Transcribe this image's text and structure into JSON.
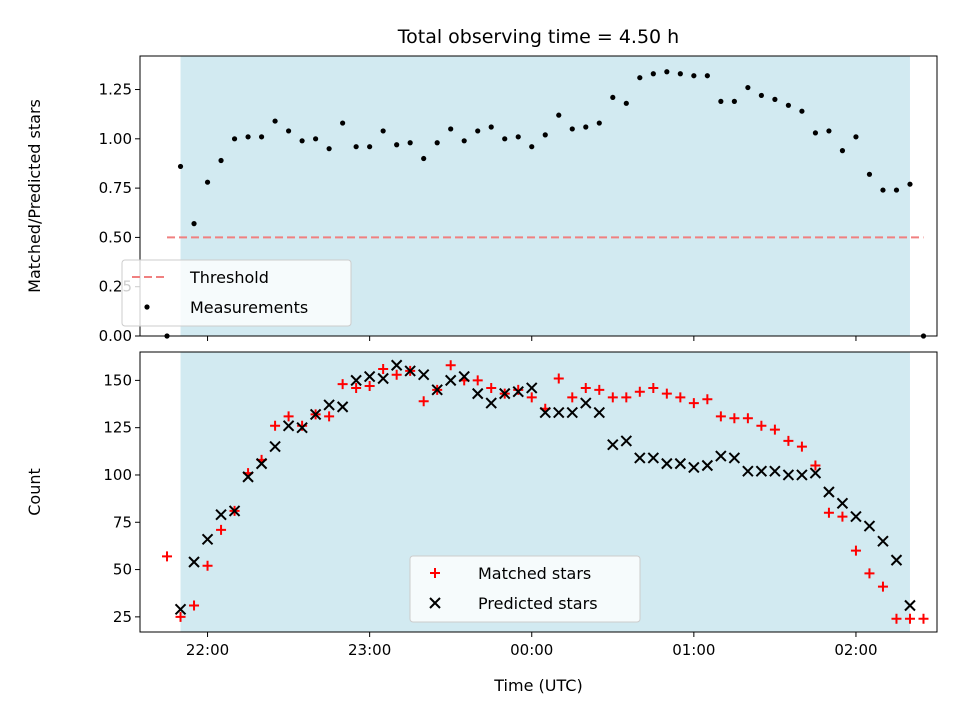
{
  "chart_data": [
    {
      "type": "scatter",
      "title": "Total observing time = 4.50 h",
      "xlabel": "",
      "ylabel": "Matched/Predicted stars",
      "xlim": [
        "21:35",
        "02:30"
      ],
      "ylim": [
        0,
        1.42
      ],
      "y_ticks": [
        "0.00",
        "0.25",
        "0.50",
        "0.75",
        "1.00",
        "1.25"
      ],
      "shaded_interval": [
        "21:50",
        "02:20"
      ],
      "shaded_color": "#add8e6",
      "legend_position": "lower-left",
      "series": [
        {
          "name": "Threshold",
          "style": "dashed-line",
          "color": "#f08080",
          "x": [
            "21:45",
            "02:25"
          ],
          "y": [
            0.5,
            0.5
          ]
        },
        {
          "name": "Measurements",
          "style": "dot",
          "color": "#000000",
          "x": [
            "21:45",
            "21:50",
            "21:55",
            "22:00",
            "22:05",
            "22:10",
            "22:15",
            "22:20",
            "22:25",
            "22:30",
            "22:35",
            "22:40",
            "22:45",
            "22:50",
            "22:55",
            "23:00",
            "23:05",
            "23:10",
            "23:15",
            "23:20",
            "23:25",
            "23:30",
            "23:35",
            "23:40",
            "23:45",
            "23:50",
            "23:55",
            "00:00",
            "00:05",
            "00:10",
            "00:15",
            "00:20",
            "00:25",
            "00:30",
            "00:35",
            "00:40",
            "00:45",
            "00:50",
            "00:55",
            "01:00",
            "01:05",
            "01:10",
            "01:15",
            "01:20",
            "01:25",
            "01:30",
            "01:35",
            "01:40",
            "01:45",
            "01:50",
            "01:55",
            "02:00",
            "02:05",
            "02:10",
            "02:15",
            "02:20",
            "02:25"
          ],
          "y": [
            0.0,
            0.86,
            0.57,
            0.78,
            0.89,
            1.0,
            1.01,
            1.01,
            1.09,
            1.04,
            0.99,
            1.0,
            0.95,
            1.08,
            0.96,
            0.96,
            1.04,
            0.97,
            0.98,
            0.9,
            0.98,
            1.05,
            0.99,
            1.04,
            1.06,
            1.0,
            1.01,
            0.96,
            1.02,
            1.12,
            1.05,
            1.06,
            1.08,
            1.21,
            1.18,
            1.31,
            1.33,
            1.34,
            1.33,
            1.32,
            1.32,
            1.19,
            1.19,
            1.26,
            1.22,
            1.2,
            1.17,
            1.14,
            1.03,
            1.04,
            0.94,
            1.01,
            0.82,
            0.74,
            0.74,
            0.77,
            0.0
          ]
        }
      ]
    },
    {
      "type": "scatter",
      "title": "",
      "xlabel": "Time (UTC)",
      "ylabel": "Count",
      "xlim": [
        "21:35",
        "02:30"
      ],
      "ylim": [
        17,
        165
      ],
      "x_ticks": [
        "22:00",
        "23:00",
        "00:00",
        "01:00",
        "02:00"
      ],
      "y_ticks": [
        25,
        50,
        75,
        100,
        125,
        150
      ],
      "shaded_interval": [
        "21:50",
        "02:20"
      ],
      "shaded_color": "#add8e6",
      "legend_position": "lower-center",
      "series": [
        {
          "name": "Matched stars",
          "marker": "plus",
          "color": "#ff0000",
          "x": [
            "21:45",
            "21:50",
            "21:55",
            "22:00",
            "22:05",
            "22:10",
            "22:15",
            "22:20",
            "22:25",
            "22:30",
            "22:35",
            "22:40",
            "22:45",
            "22:50",
            "22:55",
            "23:00",
            "23:05",
            "23:10",
            "23:15",
            "23:20",
            "23:25",
            "23:30",
            "23:35",
            "23:40",
            "23:45",
            "23:50",
            "23:55",
            "00:00",
            "00:05",
            "00:10",
            "00:15",
            "00:20",
            "00:25",
            "00:30",
            "00:35",
            "00:40",
            "00:45",
            "00:50",
            "00:55",
            "01:00",
            "01:05",
            "01:10",
            "01:15",
            "01:20",
            "01:25",
            "01:30",
            "01:35",
            "01:40",
            "01:45",
            "01:50",
            "01:55",
            "02:00",
            "02:05",
            "02:10",
            "02:15",
            "02:20",
            "02:25"
          ],
          "y": [
            57,
            25,
            31,
            52,
            71,
            81,
            101,
            108,
            126,
            131,
            126,
            132,
            131,
            148,
            146,
            147,
            156,
            153,
            155,
            139,
            145,
            158,
            150,
            150,
            146,
            143,
            145,
            141,
            135,
            151,
            141,
            146,
            145,
            141,
            141,
            144,
            146,
            143,
            141,
            138,
            140,
            131,
            130,
            130,
            126,
            124,
            118,
            115,
            105,
            80,
            78,
            60,
            48,
            41,
            24,
            24,
            24
          ]
        },
        {
          "name": "Predicted stars",
          "marker": "x",
          "color": "#000000",
          "x": [
            "21:50",
            "21:55",
            "22:00",
            "22:05",
            "22:10",
            "22:15",
            "22:20",
            "22:25",
            "22:30",
            "22:35",
            "22:40",
            "22:45",
            "22:50",
            "22:55",
            "23:00",
            "23:05",
            "23:10",
            "23:15",
            "23:20",
            "23:25",
            "23:30",
            "23:35",
            "23:40",
            "23:45",
            "23:50",
            "23:55",
            "00:00",
            "00:05",
            "00:10",
            "00:15",
            "00:20",
            "00:25",
            "00:30",
            "00:35",
            "00:40",
            "00:45",
            "00:50",
            "00:55",
            "01:00",
            "01:05",
            "01:10",
            "01:15",
            "01:20",
            "01:25",
            "01:30",
            "01:35",
            "01:40",
            "01:45",
            "01:50",
            "01:55",
            "02:00",
            "02:05",
            "02:10",
            "02:15",
            "02:20"
          ],
          "y": [
            29,
            54,
            66,
            79,
            81,
            99,
            106,
            115,
            126,
            125,
            132,
            137,
            136,
            150,
            152,
            151,
            158,
            155,
            153,
            145,
            150,
            152,
            143,
            138,
            143,
            144,
            146,
            133,
            133,
            133,
            138,
            133,
            116,
            118,
            109,
            109,
            106,
            106,
            104,
            105,
            110,
            109,
            102,
            102,
            102,
            100,
            100,
            101,
            91,
            85,
            78,
            73,
            65,
            55,
            31
          ]
        }
      ]
    }
  ]
}
